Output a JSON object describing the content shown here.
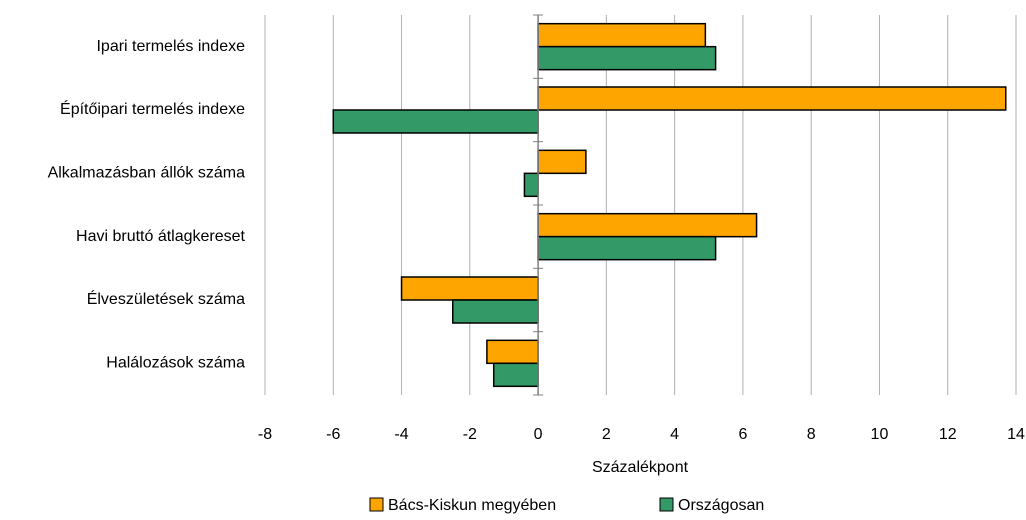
{
  "chart_data": {
    "type": "hbar",
    "categories": [
      "Ipari termelés indexe",
      "Építőipari termelés indexe",
      "Alkalmazásban állók száma",
      "Havi bruttó átlagkereset",
      "Élveszületések száma",
      "Halálozások száma"
    ],
    "series": [
      {
        "name": "Bács-Kiskun megyében",
        "color": "#ffa500",
        "values": [
          4.9,
          13.7,
          1.4,
          6.4,
          -4.0,
          -1.5
        ]
      },
      {
        "name": "Országosan",
        "color": "#339966",
        "values": [
          5.2,
          -6.0,
          -0.4,
          5.2,
          -2.5,
          -1.3
        ]
      }
    ],
    "xlabel": "Százalékpont",
    "xlim": [
      -8,
      14
    ],
    "xticks": [
      -8,
      -6,
      -4,
      -2,
      0,
      2,
      4,
      6,
      8,
      10,
      12,
      14
    ],
    "grid": true,
    "legend": "bottom"
  }
}
